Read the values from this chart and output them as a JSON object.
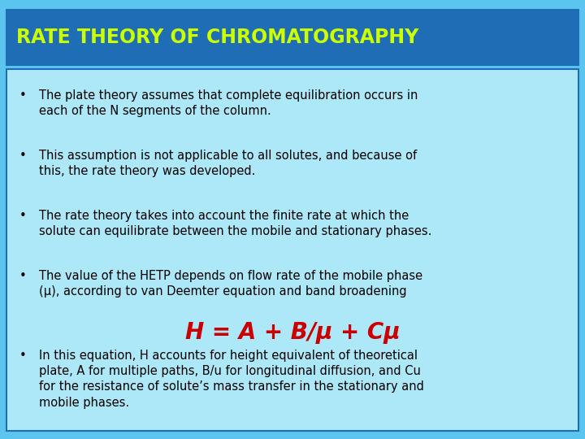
{
  "title": "RATE THEORY OF CHROMATOGRAPHY",
  "title_color": "#CCFF00",
  "title_bg_color": "#1E6DB5",
  "title_fontsize": 17,
  "bg_color_outer": "#5BC4EF",
  "bg_color_inner": "#ADE8F8",
  "bullet_points": [
    "The plate theory assumes that complete equilibration occurs in\neach of the N segments of the column.",
    "This assumption is not applicable to all solutes, and because of\nthis, the rate theory was developed.",
    "The rate theory takes into account the finite rate at which the\nsolute can equilibrate between the mobile and stationary phases.",
    "The value of the HETP depends on flow rate of the mobile phase\n(μ), according to van Deemter equation and band broadening"
  ],
  "equation": "H = A + B/μ + Cμ",
  "equation_color": "#CC0000",
  "equation_fontsize": 20,
  "last_bullet": "In this equation, H accounts for height equivalent of theoretical\nplate, A for multiple paths, B/u for longitudinal diffusion, and Cu\nfor the resistance of solute’s mass transfer in the stationary and\nmobile phases.",
  "bullet_fontsize": 10.5,
  "text_color": "#000000",
  "border_color": "#1E6DB5",
  "fig_width": 7.2,
  "fig_height": 5.4,
  "dpi": 100
}
